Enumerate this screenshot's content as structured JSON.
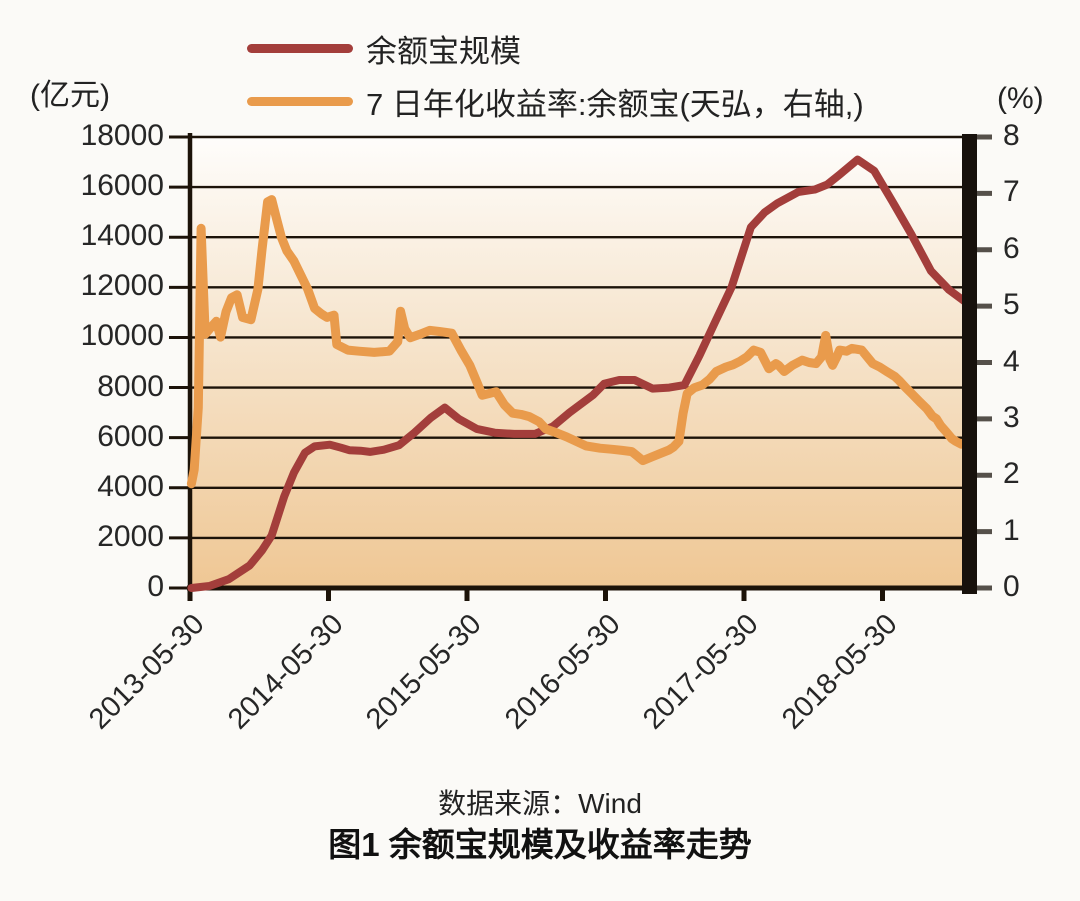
{
  "labels": {
    "left_unit": "(亿元)",
    "right_unit": "(%)",
    "source": "数据来源：Wind",
    "caption": "图1 余额宝规模及收益率走势"
  },
  "chart_data": {
    "type": "line",
    "title": "图1 余额宝规模及收益率走势",
    "source": "数据来源：Wind",
    "legend_position": "top-left",
    "grid": "horizontal gridlines at every left-axis tick",
    "plot_gradient": {
      "top": "#FEFDFB",
      "mid": "#F6E4CC",
      "bottom": "#EFC794"
    },
    "axis_color": "#1c1309",
    "x_axis": {
      "min": 2013.41,
      "max": 2019.05,
      "ticks": [
        {
          "v": 2013.41,
          "label": "2013-05-30"
        },
        {
          "v": 2014.41,
          "label": "2014-05-30"
        },
        {
          "v": 2015.41,
          "label": "2015-05-30"
        },
        {
          "v": 2016.41,
          "label": "2016-05-30"
        },
        {
          "v": 2017.41,
          "label": "2017-05-30"
        },
        {
          "v": 2018.41,
          "label": "2018-05-30"
        }
      ]
    },
    "left_axis": {
      "unit": "(亿元)",
      "min": 0,
      "max": 18000,
      "tick_step": 2000,
      "ticks": [
        {
          "v": 18000,
          "label": "18000"
        },
        {
          "v": 16000,
          "label": "16000"
        },
        {
          "v": 14000,
          "label": "14000"
        },
        {
          "v": 12000,
          "label": "12000"
        },
        {
          "v": 10000,
          "label": "10000"
        },
        {
          "v": 8000,
          "label": "8000"
        },
        {
          "v": 6000,
          "label": "6000"
        },
        {
          "v": 4000,
          "label": "4000"
        },
        {
          "v": 2000,
          "label": "2000"
        },
        {
          "v": 0,
          "label": "0"
        }
      ]
    },
    "right_axis": {
      "unit": "(%)",
      "min": 0,
      "max": 8,
      "tick_step": 1,
      "ticks": [
        {
          "v": 8,
          "label": "8"
        },
        {
          "v": 7,
          "label": "7"
        },
        {
          "v": 6,
          "label": "6"
        },
        {
          "v": 5,
          "label": "5"
        },
        {
          "v": 4,
          "label": "4"
        },
        {
          "v": 3,
          "label": "3"
        },
        {
          "v": 2,
          "label": "2"
        },
        {
          "v": 1,
          "label": "1"
        },
        {
          "v": 0,
          "label": "0"
        }
      ]
    },
    "series": [
      {
        "name": "余额宝规模",
        "axis": "left",
        "color": "#A33E3B",
        "width": 8,
        "points": [
          [
            2013.42,
            0
          ],
          [
            2013.55,
            80
          ],
          [
            2013.69,
            350
          ],
          [
            2013.84,
            900
          ],
          [
            2013.93,
            1500
          ],
          [
            2014.0,
            2100
          ],
          [
            2014.09,
            3650
          ],
          [
            2014.16,
            4600
          ],
          [
            2014.24,
            5400
          ],
          [
            2014.31,
            5650
          ],
          [
            2014.42,
            5720
          ],
          [
            2014.5,
            5600
          ],
          [
            2014.56,
            5500
          ],
          [
            2014.64,
            5480
          ],
          [
            2014.71,
            5430
          ],
          [
            2014.81,
            5520
          ],
          [
            2014.92,
            5700
          ],
          [
            2015.03,
            6200
          ],
          [
            2015.15,
            6800
          ],
          [
            2015.25,
            7200
          ],
          [
            2015.35,
            6750
          ],
          [
            2015.48,
            6350
          ],
          [
            2015.61,
            6200
          ],
          [
            2015.75,
            6150
          ],
          [
            2015.9,
            6150
          ],
          [
            2016.03,
            6450
          ],
          [
            2016.15,
            7000
          ],
          [
            2016.32,
            7700
          ],
          [
            2016.4,
            8150
          ],
          [
            2016.51,
            8300
          ],
          [
            2016.62,
            8300
          ],
          [
            2016.75,
            7960
          ],
          [
            2016.87,
            8000
          ],
          [
            2016.98,
            8100
          ],
          [
            2017.09,
            9300
          ],
          [
            2017.2,
            10600
          ],
          [
            2017.32,
            12000
          ],
          [
            2017.46,
            14400
          ],
          [
            2017.56,
            15000
          ],
          [
            2017.65,
            15350
          ],
          [
            2017.8,
            15800
          ],
          [
            2017.92,
            15900
          ],
          [
            2018.01,
            16100
          ],
          [
            2018.1,
            16500
          ],
          [
            2018.23,
            17100
          ],
          [
            2018.35,
            16650
          ],
          [
            2018.5,
            15250
          ],
          [
            2018.62,
            14100
          ],
          [
            2018.76,
            12650
          ],
          [
            2018.89,
            11900
          ],
          [
            2019.0,
            11450
          ]
        ]
      },
      {
        "name": "7 日年化收益率:余额宝(天弘，右轴,)",
        "axis": "right",
        "color": "#E99B4C",
        "width": 9,
        "points": [
          [
            2013.42,
            1.85
          ],
          [
            2013.44,
            2.1
          ],
          [
            2013.47,
            3.2
          ],
          [
            2013.49,
            6.38
          ],
          [
            2013.52,
            4.5
          ],
          [
            2013.56,
            4.62
          ],
          [
            2013.6,
            4.73
          ],
          [
            2013.63,
            4.45
          ],
          [
            2013.67,
            4.9
          ],
          [
            2013.71,
            5.15
          ],
          [
            2013.75,
            5.2
          ],
          [
            2013.79,
            4.8
          ],
          [
            2013.85,
            4.76
          ],
          [
            2013.9,
            5.3
          ],
          [
            2013.93,
            6.0
          ],
          [
            2013.97,
            6.85
          ],
          [
            2014.0,
            6.89
          ],
          [
            2014.04,
            6.5
          ],
          [
            2014.07,
            6.22
          ],
          [
            2014.11,
            5.98
          ],
          [
            2014.16,
            5.8
          ],
          [
            2014.21,
            5.55
          ],
          [
            2014.26,
            5.3
          ],
          [
            2014.31,
            4.96
          ],
          [
            2014.36,
            4.86
          ],
          [
            2014.4,
            4.8
          ],
          [
            2014.45,
            4.84
          ],
          [
            2014.47,
            4.32
          ],
          [
            2014.55,
            4.22
          ],
          [
            2014.63,
            4.2
          ],
          [
            2014.74,
            4.18
          ],
          [
            2014.85,
            4.2
          ],
          [
            2014.91,
            4.37
          ],
          [
            2014.93,
            4.91
          ],
          [
            2014.96,
            4.6
          ],
          [
            2015.0,
            4.44
          ],
          [
            2015.07,
            4.5
          ],
          [
            2015.14,
            4.57
          ],
          [
            2015.21,
            4.55
          ],
          [
            2015.3,
            4.52
          ],
          [
            2015.37,
            4.2
          ],
          [
            2015.43,
            3.95
          ],
          [
            2015.48,
            3.66
          ],
          [
            2015.52,
            3.42
          ],
          [
            2015.57,
            3.45
          ],
          [
            2015.62,
            3.48
          ],
          [
            2015.68,
            3.25
          ],
          [
            2015.74,
            3.1
          ],
          [
            2015.8,
            3.08
          ],
          [
            2015.86,
            3.04
          ],
          [
            2015.93,
            2.95
          ],
          [
            2015.98,
            2.82
          ],
          [
            2016.06,
            2.75
          ],
          [
            2016.13,
            2.68
          ],
          [
            2016.2,
            2.6
          ],
          [
            2016.27,
            2.52
          ],
          [
            2016.37,
            2.48
          ],
          [
            2016.46,
            2.46
          ],
          [
            2016.53,
            2.44
          ],
          [
            2016.6,
            2.42
          ],
          [
            2016.68,
            2.26
          ],
          [
            2016.75,
            2.33
          ],
          [
            2016.82,
            2.4
          ],
          [
            2016.87,
            2.45
          ],
          [
            2016.9,
            2.5
          ],
          [
            2016.94,
            2.6
          ],
          [
            2016.97,
            3.1
          ],
          [
            2017.0,
            3.45
          ],
          [
            2017.05,
            3.55
          ],
          [
            2017.11,
            3.6
          ],
          [
            2017.16,
            3.7
          ],
          [
            2017.21,
            3.84
          ],
          [
            2017.28,
            3.92
          ],
          [
            2017.33,
            3.96
          ],
          [
            2017.38,
            4.02
          ],
          [
            2017.43,
            4.1
          ],
          [
            2017.48,
            4.22
          ],
          [
            2017.53,
            4.18
          ],
          [
            2017.59,
            3.89
          ],
          [
            2017.64,
            3.98
          ],
          [
            2017.66,
            3.95
          ],
          [
            2017.7,
            3.84
          ],
          [
            2017.76,
            3.95
          ],
          [
            2017.83,
            4.04
          ],
          [
            2017.88,
            4.0
          ],
          [
            2017.93,
            3.98
          ],
          [
            2017.97,
            4.1
          ],
          [
            2018.0,
            4.48
          ],
          [
            2018.03,
            4.05
          ],
          [
            2018.05,
            3.95
          ],
          [
            2018.08,
            4.1
          ],
          [
            2018.1,
            4.22
          ],
          [
            2018.15,
            4.2
          ],
          [
            2018.19,
            4.25
          ],
          [
            2018.26,
            4.22
          ],
          [
            2018.34,
            3.98
          ],
          [
            2018.39,
            3.92
          ],
          [
            2018.44,
            3.84
          ],
          [
            2018.5,
            3.75
          ],
          [
            2018.53,
            3.68
          ],
          [
            2018.58,
            3.55
          ],
          [
            2018.62,
            3.45
          ],
          [
            2018.68,
            3.3
          ],
          [
            2018.73,
            3.18
          ],
          [
            2018.77,
            3.05
          ],
          [
            2018.8,
            3.0
          ],
          [
            2018.83,
            2.88
          ],
          [
            2018.87,
            2.77
          ],
          [
            2018.91,
            2.65
          ],
          [
            2018.94,
            2.6
          ],
          [
            2018.98,
            2.55
          ],
          [
            2019.01,
            2.58
          ],
          [
            2019.04,
            2.62
          ]
        ]
      }
    ]
  }
}
